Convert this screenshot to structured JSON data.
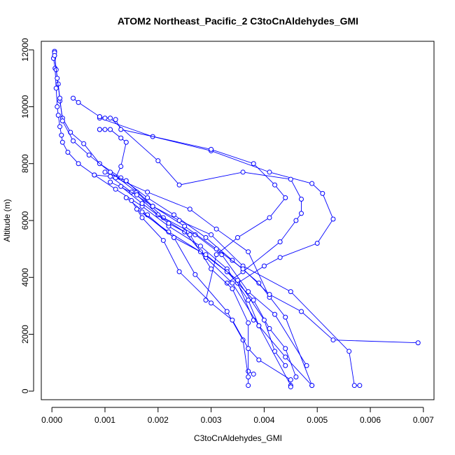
{
  "chart_data": {
    "type": "line",
    "title": "ATOM2 Northeast_Pacific_2 C3toCnAldehydes_GMI",
    "xlabel": "C3toCnAldehydes_GMI",
    "ylabel": "Altitude (m)",
    "xlim": [
      -0.0002,
      0.0072
    ],
    "ylim": [
      -300,
      12300
    ],
    "xticks": [
      0.0,
      0.001,
      0.002,
      0.003,
      0.004,
      0.005,
      0.006,
      0.007
    ],
    "xtick_labels": [
      "0.000",
      "0.001",
      "0.002",
      "0.003",
      "0.004",
      "0.005",
      "0.006",
      "0.007"
    ],
    "yticks": [
      0,
      2000,
      4000,
      6000,
      8000,
      10000,
      12000
    ],
    "ytick_labels": [
      "0",
      "2000",
      "4000",
      "6000",
      "8000",
      "10000",
      "12000"
    ],
    "grid": false,
    "line_color": "#0000ff",
    "marker": "open-circle",
    "series": [
      {
        "x": [
          5e-05,
          5e-05,
          3e-05,
          6e-05,
          8e-05,
          0.0001,
          0.00012,
          0.00015,
          0.00018,
          0.0002,
          0.0003,
          0.0005,
          0.0008,
          0.0012,
          0.0017,
          0.0022,
          0.0028,
          0.0033,
          0.0037,
          0.0039,
          0.0045
        ],
        "y": [
          11950,
          11800,
          11700,
          11350,
          10650,
          10000,
          9700,
          9300,
          9000,
          8750,
          8400,
          8000,
          7600,
          7100,
          6500,
          5800,
          5100,
          4300,
          3200,
          2300,
          200
        ]
      },
      {
        "x": [
          5e-05,
          8e-05,
          0.00012,
          0.00015,
          0.0002,
          0.00035,
          0.0006,
          0.0009,
          0.0013,
          0.0018,
          0.0023,
          0.0029,
          0.0034,
          0.0039,
          0.0044,
          0.0049
        ],
        "y": [
          11900,
          11300,
          10800,
          10200,
          9600,
          9100,
          8700,
          8000,
          7500,
          6800,
          6200,
          5400,
          4600,
          3800,
          2600,
          200
        ]
      },
      {
        "x": [
          5e-05,
          0.0001,
          0.00015,
          0.0002,
          0.0004,
          0.0007,
          0.0011,
          0.0016,
          0.0021,
          0.0027,
          0.0032,
          0.0037,
          0.0042,
          0.0048
        ],
        "y": [
          11800,
          11000,
          10300,
          9500,
          8800,
          8300,
          7700,
          7000,
          6100,
          5500,
          4800,
          3500,
          2700,
          900
        ]
      },
      {
        "x": [
          0.0004,
          0.0005,
          0.0009,
          0.0009,
          0.0019,
          0.003,
          0.0041,
          0.0049,
          0.0051,
          0.0053,
          0.005,
          0.0043,
          0.004,
          0.0035,
          0.0038
        ],
        "y": [
          10300,
          10150,
          9650,
          9600,
          8950,
          8450,
          7700,
          7300,
          6950,
          6050,
          5200,
          4700,
          4400,
          3800,
          2500
        ]
      },
      {
        "x": [
          0.0009,
          0.001,
          0.0011,
          0.002,
          0.0024,
          0.0036,
          0.0045,
          0.0047,
          0.0047,
          0.0046,
          0.0043,
          0.0036,
          0.0033
        ],
        "y": [
          9650,
          9600,
          9600,
          8100,
          7250,
          7700,
          7450,
          6750,
          6250,
          6000,
          5250,
          4200,
          3800
        ]
      },
      {
        "x": [
          0.0012,
          0.0013,
          0.003,
          0.0038,
          0.0042,
          0.0044,
          0.0041,
          0.0035,
          0.0031,
          0.0029
        ],
        "y": [
          9550,
          9200,
          8500,
          8000,
          7250,
          6800,
          6100,
          5400,
          4800,
          3200
        ]
      },
      {
        "x": [
          0.0009,
          0.0009,
          0.001,
          0.0011,
          0.0013,
          0.0014,
          0.0013,
          0.0012,
          0.0018,
          0.0026,
          0.0031,
          0.0037,
          0.0041
        ],
        "y": [
          9200,
          9200,
          9200,
          9200,
          8900,
          8750,
          7900,
          7500,
          7000,
          6400,
          5700,
          4900,
          3300
        ]
      },
      {
        "x": [
          0.0008,
          0.0011,
          0.0015,
          0.0019,
          0.0024,
          0.003,
          0.0036,
          0.0045,
          0.0056,
          0.0057,
          0.0058
        ],
        "y": [
          7600,
          7550,
          7000,
          6500,
          6000,
          5500,
          4400,
          3500,
          1400,
          200,
          200
        ]
      },
      {
        "x": [
          0.001,
          0.0014,
          0.0019,
          0.0025,
          0.0031,
          0.0036,
          0.0041,
          0.0047,
          0.0053,
          0.0069
        ],
        "y": [
          7700,
          7400,
          6500,
          5800,
          5000,
          4300,
          3400,
          2800,
          1800,
          1700
        ]
      },
      {
        "x": [
          0.0011,
          0.0016,
          0.002,
          0.0025,
          0.0029,
          0.0034,
          0.0039,
          0.0044,
          0.0049
        ],
        "y": [
          7350,
          6900,
          6200,
          5600,
          4700,
          3800,
          2300,
          1200,
          200
        ]
      },
      {
        "x": [
          0.0013,
          0.0017,
          0.0022,
          0.0026,
          0.003,
          0.0034,
          0.0037,
          0.0037,
          0.0038
        ],
        "y": [
          7200,
          6600,
          5900,
          5500,
          4300,
          3600,
          2400,
          700,
          600
        ]
      },
      {
        "x": [
          0.0014,
          0.0018,
          0.0023,
          0.0027,
          0.0033,
          0.0036,
          0.0037,
          0.0037
        ],
        "y": [
          6800,
          6200,
          5400,
          4100,
          2800,
          1800,
          500,
          200
        ]
      },
      {
        "x": [
          0.0015,
          0.0017,
          0.0021,
          0.0024,
          0.003,
          0.0034,
          0.0037,
          0.0039,
          0.0045,
          0.0045
        ],
        "y": [
          6700,
          6100,
          5300,
          4200,
          3100,
          2500,
          1500,
          1100,
          400,
          150
        ]
      },
      {
        "x": [
          0.0016,
          0.0022,
          0.0028,
          0.0033,
          0.0038,
          0.0041,
          0.0044,
          0.0046
        ],
        "y": [
          6400,
          5600,
          4900,
          4200,
          3200,
          2200,
          1500,
          500
        ]
      },
      {
        "x": [
          0.0017,
          0.0023,
          0.0029,
          0.0035,
          0.004,
          0.0042,
          0.0044
        ],
        "y": [
          6300,
          5400,
          4800,
          3900,
          2500,
          1400,
          900
        ]
      }
    ]
  }
}
